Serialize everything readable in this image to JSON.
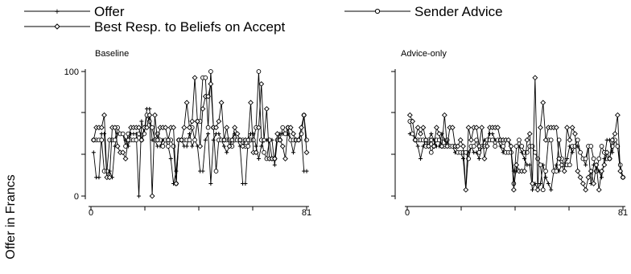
{
  "legend": {
    "items": [
      {
        "label": "Offer",
        "marker": "plus"
      },
      {
        "label": "Sender Advice",
        "marker": "circle"
      },
      {
        "label": "Best Resp. to Beliefs on Accept",
        "marker": "diamond"
      }
    ]
  },
  "ylabel": "Offer in Francs",
  "chart_data": [
    {
      "type": "line",
      "title": "Baseline",
      "xlim": [
        0,
        81
      ],
      "ylim": [
        0,
        100
      ],
      "xticks": [
        0,
        81
      ],
      "yticks": [
        0,
        100
      ],
      "series": [
        {
          "name": "Offer",
          "marker": "plus",
          "values": [
            35,
            15,
            15,
            50,
            50,
            15,
            20,
            15,
            40,
            50,
            50,
            50,
            45,
            40,
            50,
            50,
            50,
            0,
            60,
            50,
            70,
            70,
            45,
            45,
            40,
            40,
            45,
            45,
            40,
            30,
            10,
            20,
            45,
            45,
            40,
            40,
            50,
            40,
            45,
            40,
            20,
            20,
            45,
            50,
            10,
            45,
            50,
            50,
            45,
            40,
            35,
            40,
            45,
            50,
            45,
            40,
            10,
            10,
            45,
            50,
            50,
            40,
            30,
            40,
            45,
            45,
            45,
            45,
            25,
            45,
            50,
            50,
            50,
            50,
            45,
            35,
            45,
            45,
            50,
            20,
            20
          ]
        },
        {
          "name": "Sender Advice",
          "marker": "circle",
          "values": [
            45,
            45,
            45,
            45,
            20,
            20,
            45,
            45,
            45,
            55,
            50,
            50,
            40,
            50,
            45,
            45,
            45,
            50,
            45,
            50,
            65,
            60,
            55,
            45,
            50,
            45,
            40,
            45,
            40,
            45,
            40,
            10,
            45,
            45,
            45,
            45,
            45,
            55,
            45,
            60,
            60,
            95,
            95,
            55,
            100,
            55,
            20,
            45,
            45,
            45,
            45,
            45,
            40,
            45,
            45,
            45,
            45,
            40,
            40,
            45,
            45,
            55,
            100,
            45,
            35,
            30,
            45,
            30,
            30,
            45,
            45,
            55,
            50,
            55,
            45,
            45,
            45,
            45,
            50,
            65,
            45
          ]
        },
        {
          "name": "Best Resp. to Beliefs on Accept",
          "marker": "diamond",
          "values": [
            45,
            55,
            55,
            55,
            65,
            15,
            15,
            55,
            55,
            40,
            35,
            35,
            30,
            45,
            55,
            55,
            55,
            55,
            45,
            55,
            55,
            65,
            0,
            65,
            45,
            55,
            55,
            55,
            45,
            55,
            55,
            10,
            45,
            45,
            55,
            75,
            55,
            60,
            95,
            60,
            40,
            70,
            80,
            80,
            90,
            55,
            55,
            60,
            75,
            45,
            55,
            40,
            45,
            55,
            50,
            45,
            40,
            45,
            45,
            75,
            35,
            35,
            55,
            90,
            45,
            70,
            30,
            30,
            30,
            50,
            45,
            40,
            30,
            55,
            55,
            50,
            45,
            45,
            55,
            65,
            35
          ]
        }
      ]
    },
    {
      "type": "line",
      "title": "Advice-only",
      "xlim": [
        0,
        81
      ],
      "ylim": [
        0,
        100
      ],
      "xticks": [
        0,
        81
      ],
      "yticks": [],
      "series": [
        {
          "name": "Offer",
          "marker": "plus",
          "values": [
            50,
            50,
            45,
            40,
            30,
            40,
            45,
            45,
            50,
            45,
            40,
            40,
            50,
            45,
            40,
            40,
            40,
            35,
            35,
            35,
            30,
            5,
            35,
            40,
            35,
            35,
            30,
            40,
            45,
            45,
            50,
            50,
            45,
            45,
            40,
            35,
            45,
            45,
            35,
            20,
            20,
            40,
            35,
            30,
            25,
            25,
            5,
            10,
            5,
            10,
            25,
            15,
            10,
            5,
            20,
            25,
            20,
            25,
            25,
            30,
            40,
            35,
            40,
            40,
            35,
            30,
            25,
            40,
            10,
            25,
            25,
            20,
            15,
            30,
            45,
            45,
            35,
            45,
            40,
            20,
            15
          ]
        },
        {
          "name": "Sender Advice",
          "marker": "circle",
          "values": [
            60,
            50,
            45,
            45,
            45,
            45,
            40,
            45,
            35,
            40,
            45,
            45,
            40,
            40,
            45,
            40,
            40,
            40,
            35,
            35,
            35,
            35,
            30,
            40,
            40,
            45,
            35,
            40,
            40,
            45,
            45,
            45,
            40,
            45,
            45,
            40,
            35,
            35,
            35,
            10,
            40,
            45,
            40,
            35,
            35,
            40,
            40,
            35,
            30,
            25,
            5,
            20,
            45,
            45,
            20,
            20,
            45,
            30,
            25,
            25,
            25,
            40,
            40,
            45,
            35,
            30,
            30,
            40,
            40,
            30,
            20,
            30,
            40,
            35,
            30,
            30,
            40,
            45,
            40,
            25,
            15
          ]
        },
        {
          "name": "Best Resp. to Beliefs on Accept",
          "marker": "diamond",
          "values": [
            65,
            60,
            45,
            55,
            50,
            55,
            45,
            40,
            45,
            40,
            55,
            50,
            40,
            65,
            40,
            55,
            55,
            40,
            40,
            45,
            40,
            5,
            55,
            45,
            55,
            55,
            40,
            55,
            30,
            40,
            55,
            55,
            55,
            55,
            45,
            45,
            45,
            45,
            40,
            5,
            25,
            20,
            20,
            20,
            45,
            50,
            10,
            95,
            5,
            55,
            75,
            45,
            55,
            55,
            55,
            55,
            30,
            25,
            20,
            55,
            45,
            55,
            50,
            20,
            15,
            10,
            5,
            15,
            20,
            10,
            25,
            5,
            20,
            25,
            35,
            30,
            45,
            50,
            65,
            20,
            15
          ]
        }
      ]
    }
  ]
}
